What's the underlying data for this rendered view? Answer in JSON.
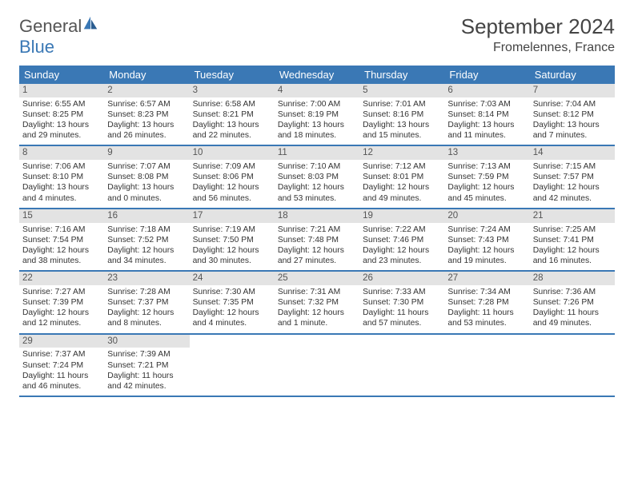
{
  "brand": {
    "part1": "General",
    "part2": "Blue"
  },
  "title": {
    "month": "September 2024",
    "location": "Fromelennes, France"
  },
  "weekdays": [
    "Sunday",
    "Monday",
    "Tuesday",
    "Wednesday",
    "Thursday",
    "Friday",
    "Saturday"
  ],
  "header_bg": "#3a78b5",
  "daynum_bg": "#e3e3e3",
  "week_border": "#3a78b5",
  "weeks": [
    [
      {
        "n": "1",
        "sr": "6:55 AM",
        "ss": "8:25 PM",
        "dl": "13 hours and 29 minutes."
      },
      {
        "n": "2",
        "sr": "6:57 AM",
        "ss": "8:23 PM",
        "dl": "13 hours and 26 minutes."
      },
      {
        "n": "3",
        "sr": "6:58 AM",
        "ss": "8:21 PM",
        "dl": "13 hours and 22 minutes."
      },
      {
        "n": "4",
        "sr": "7:00 AM",
        "ss": "8:19 PM",
        "dl": "13 hours and 18 minutes."
      },
      {
        "n": "5",
        "sr": "7:01 AM",
        "ss": "8:16 PM",
        "dl": "13 hours and 15 minutes."
      },
      {
        "n": "6",
        "sr": "7:03 AM",
        "ss": "8:14 PM",
        "dl": "13 hours and 11 minutes."
      },
      {
        "n": "7",
        "sr": "7:04 AM",
        "ss": "8:12 PM",
        "dl": "13 hours and 7 minutes."
      }
    ],
    [
      {
        "n": "8",
        "sr": "7:06 AM",
        "ss": "8:10 PM",
        "dl": "13 hours and 4 minutes."
      },
      {
        "n": "9",
        "sr": "7:07 AM",
        "ss": "8:08 PM",
        "dl": "13 hours and 0 minutes."
      },
      {
        "n": "10",
        "sr": "7:09 AM",
        "ss": "8:06 PM",
        "dl": "12 hours and 56 minutes."
      },
      {
        "n": "11",
        "sr": "7:10 AM",
        "ss": "8:03 PM",
        "dl": "12 hours and 53 minutes."
      },
      {
        "n": "12",
        "sr": "7:12 AM",
        "ss": "8:01 PM",
        "dl": "12 hours and 49 minutes."
      },
      {
        "n": "13",
        "sr": "7:13 AM",
        "ss": "7:59 PM",
        "dl": "12 hours and 45 minutes."
      },
      {
        "n": "14",
        "sr": "7:15 AM",
        "ss": "7:57 PM",
        "dl": "12 hours and 42 minutes."
      }
    ],
    [
      {
        "n": "15",
        "sr": "7:16 AM",
        "ss": "7:54 PM",
        "dl": "12 hours and 38 minutes."
      },
      {
        "n": "16",
        "sr": "7:18 AM",
        "ss": "7:52 PM",
        "dl": "12 hours and 34 minutes."
      },
      {
        "n": "17",
        "sr": "7:19 AM",
        "ss": "7:50 PM",
        "dl": "12 hours and 30 minutes."
      },
      {
        "n": "18",
        "sr": "7:21 AM",
        "ss": "7:48 PM",
        "dl": "12 hours and 27 minutes."
      },
      {
        "n": "19",
        "sr": "7:22 AM",
        "ss": "7:46 PM",
        "dl": "12 hours and 23 minutes."
      },
      {
        "n": "20",
        "sr": "7:24 AM",
        "ss": "7:43 PM",
        "dl": "12 hours and 19 minutes."
      },
      {
        "n": "21",
        "sr": "7:25 AM",
        "ss": "7:41 PM",
        "dl": "12 hours and 16 minutes."
      }
    ],
    [
      {
        "n": "22",
        "sr": "7:27 AM",
        "ss": "7:39 PM",
        "dl": "12 hours and 12 minutes."
      },
      {
        "n": "23",
        "sr": "7:28 AM",
        "ss": "7:37 PM",
        "dl": "12 hours and 8 minutes."
      },
      {
        "n": "24",
        "sr": "7:30 AM",
        "ss": "7:35 PM",
        "dl": "12 hours and 4 minutes."
      },
      {
        "n": "25",
        "sr": "7:31 AM",
        "ss": "7:32 PM",
        "dl": "12 hours and 1 minute."
      },
      {
        "n": "26",
        "sr": "7:33 AM",
        "ss": "7:30 PM",
        "dl": "11 hours and 57 minutes."
      },
      {
        "n": "27",
        "sr": "7:34 AM",
        "ss": "7:28 PM",
        "dl": "11 hours and 53 minutes."
      },
      {
        "n": "28",
        "sr": "7:36 AM",
        "ss": "7:26 PM",
        "dl": "11 hours and 49 minutes."
      }
    ],
    [
      {
        "n": "29",
        "sr": "7:37 AM",
        "ss": "7:24 PM",
        "dl": "11 hours and 46 minutes."
      },
      {
        "n": "30",
        "sr": "7:39 AM",
        "ss": "7:21 PM",
        "dl": "11 hours and 42 minutes."
      },
      null,
      null,
      null,
      null,
      null
    ]
  ],
  "labels": {
    "sunrise": "Sunrise: ",
    "sunset": "Sunset: ",
    "daylight": "Daylight: "
  }
}
